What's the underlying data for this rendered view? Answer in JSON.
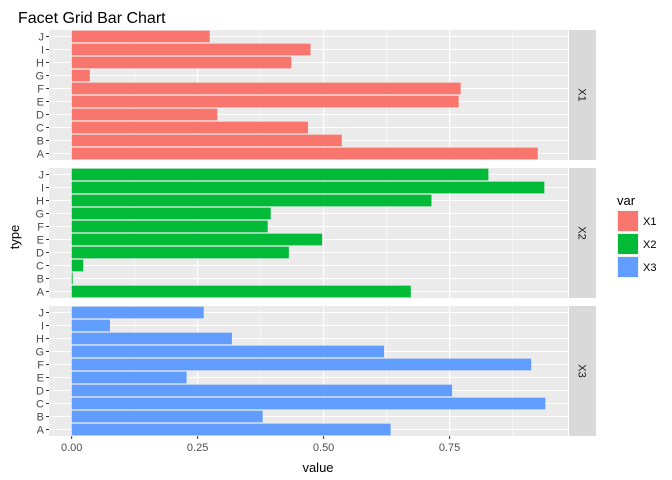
{
  "chart_data": {
    "type": "bar",
    "orientation": "horizontal",
    "title": "Facet Grid Bar Chart",
    "xlabel": "value",
    "ylabel": "type",
    "xlim": [
      -0.045,
      0.985
    ],
    "x_ticks": [
      0.0,
      0.25,
      0.5,
      0.75
    ],
    "x_tick_labels": [
      "0.00",
      "0.25",
      "0.50",
      "0.75"
    ],
    "categories": [
      "A",
      "B",
      "C",
      "D",
      "E",
      "F",
      "G",
      "H",
      "I",
      "J"
    ],
    "facet_by": "var",
    "grid": true,
    "legend_title": "var",
    "legend_position": "right",
    "series": [
      {
        "name": "X1",
        "color": "#F8766D",
        "values": [
          0.925,
          0.536,
          0.469,
          0.289,
          0.768,
          0.772,
          0.036,
          0.436,
          0.474,
          0.274
        ]
      },
      {
        "name": "X2",
        "color": "#00BA38",
        "values": [
          0.673,
          0.002,
          0.023,
          0.431,
          0.497,
          0.389,
          0.395,
          0.714,
          0.938,
          0.827
        ]
      },
      {
        "name": "X3",
        "color": "#619CFF",
        "values": [
          0.633,
          0.379,
          0.94,
          0.755,
          0.228,
          0.912,
          0.62,
          0.318,
          0.076,
          0.262
        ]
      }
    ]
  }
}
